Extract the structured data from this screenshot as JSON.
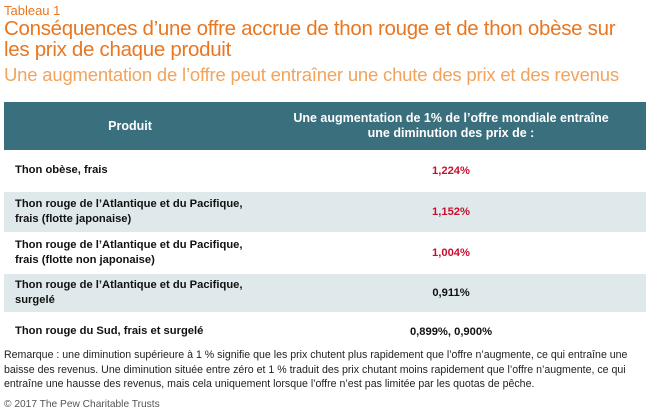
{
  "label": "Tableau 1",
  "title": "Conséquences d’une offre accrue de thon rouge et de thon obèse sur les prix de chaque produit",
  "subtitle": "Une augmentation de l’offre peut entraîner une chute des prix et des revenus",
  "table": {
    "headers": {
      "product": "Produit",
      "effect": "Une augmentation de 1% de l’offre mondiale entraîne une diminution des prix de :"
    },
    "rows": [
      {
        "product": "Thon obèse, frais",
        "value": "1,224%",
        "color": "#c8102e"
      },
      {
        "product": "Thon rouge de l’Atlantique et du Pacifique, frais (flotte japonaise)",
        "value": "1,152%",
        "color": "#c8102e"
      },
      {
        "product": "Thon rouge de l’Atlantique et du Pacifique, frais (flotte non japonaise)",
        "value": "1,004%",
        "color": "#c8102e"
      },
      {
        "product": "Thon rouge de l’Atlantique et du Pacifique, surgelé",
        "value": "0,911%",
        "color": "#111111"
      },
      {
        "product": "Thon rouge du Sud, frais et surgelé",
        "value": "0,899%, 0,900%",
        "color": "#111111"
      }
    ]
  },
  "note": "Remarque : une diminution supérieure à 1 % signifie que les prix chutent plus rapidement que l’offre n’augmente, ce qui entraîne une baisse des revenus. Une diminution située entre zéro et 1 % traduit des prix chutant moins rapidement que l’offre n’augmente, ce qui entraîne une hausse des revenus, mais cela uniquement lorsque l’offre n’est pas limitée par les quotas de pêche.",
  "copyright": "© 2017 The Pew Charitable Trusts",
  "colors": {
    "accent": "#e87722",
    "accent_light": "#f2a35c",
    "header_bg": "#3a6f7e",
    "row_alt_bg": "#dfe9ec",
    "highlight_value": "#c8102e"
  }
}
